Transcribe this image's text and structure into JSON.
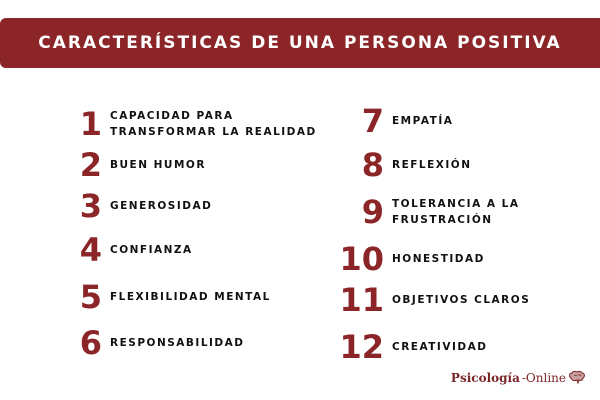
{
  "title": "CARACTERÍSTICAS DE UNA PERSONA POSITIVA",
  "accent_color": "#8b2527",
  "items": [
    {
      "number": "1",
      "label": "CAPACIDAD PARA\nTRANSFORMAR LA REALIDAD"
    },
    {
      "number": "2",
      "label": "BUEN HUMOR"
    },
    {
      "number": "3",
      "label": "GENEROSIDAD"
    },
    {
      "number": "4",
      "label": "CONFIANZA"
    },
    {
      "number": "5",
      "label": "FLEXIBILIDAD MENTAL"
    },
    {
      "number": "6",
      "label": "RESPONSABILIDAD"
    },
    {
      "number": "7",
      "label": "EMPATÍA"
    },
    {
      "number": "8",
      "label": "REFLEXIÓN"
    },
    {
      "number": "9",
      "label": "TOLERANCIA A LA\nFRUSTRACIÓN"
    },
    {
      "number": "10",
      "label": "HONESTIDAD"
    },
    {
      "number": "11",
      "label": "OBJETIVOS CLAROS"
    },
    {
      "number": "12",
      "label": "CREATIVIDAD"
    }
  ],
  "logo": {
    "part1": "Psicología",
    "part2": "-Online",
    "icon": "brain-icon"
  }
}
